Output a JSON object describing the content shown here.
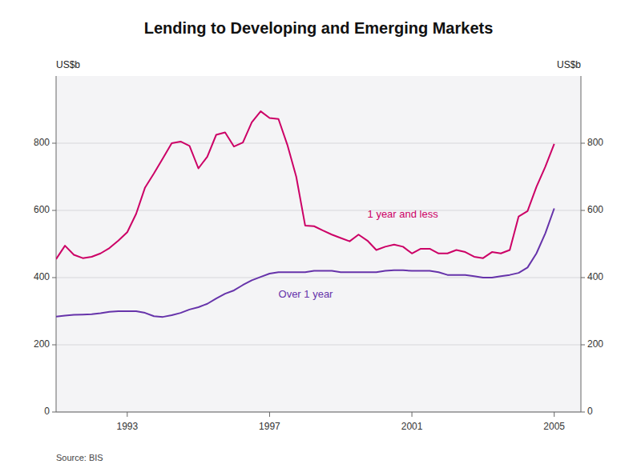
{
  "chart_data": {
    "type": "line",
    "title": "Lending to Developing and Emerging Markets",
    "y_label": "US$b",
    "y2_label": "US$b",
    "source": "Source: BIS",
    "x": [
      1991.0,
      1991.25,
      1991.5,
      1991.75,
      1992.0,
      1992.25,
      1992.5,
      1992.75,
      1993.0,
      1993.25,
      1993.5,
      1993.75,
      1994.0,
      1994.25,
      1994.5,
      1994.75,
      1995.0,
      1995.25,
      1995.5,
      1995.75,
      1996.0,
      1996.25,
      1996.5,
      1996.75,
      1997.0,
      1997.25,
      1997.5,
      1997.75,
      1998.0,
      1998.25,
      1998.5,
      1998.75,
      1999.0,
      1999.25,
      1999.5,
      1999.75,
      2000.0,
      2000.25,
      2000.5,
      2000.75,
      2001.0,
      2001.25,
      2001.5,
      2001.75,
      2002.0,
      2002.25,
      2002.5,
      2002.75,
      2003.0,
      2003.25,
      2003.5,
      2003.75,
      2004.0,
      2004.25,
      2004.5,
      2004.75,
      2005.0
    ],
    "series": [
      {
        "name": "1 year and less",
        "color": "#cc0066",
        "values": [
          455,
          495,
          468,
          458,
          462,
          472,
          488,
          510,
          535,
          590,
          668,
          710,
          755,
          800,
          805,
          792,
          725,
          760,
          825,
          832,
          790,
          802,
          862,
          895,
          875,
          872,
          795,
          700,
          555,
          553,
          540,
          528,
          518,
          508,
          528,
          510,
          482,
          492,
          498,
          492,
          472,
          486,
          486,
          472,
          472,
          482,
          476,
          462,
          458,
          476,
          472,
          482,
          582,
          598,
          670,
          730,
          798
        ]
      },
      {
        "name": "Over 1 year",
        "color": "#6633aa",
        "values": [
          284,
          287,
          289,
          290,
          291,
          294,
          298,
          300,
          300,
          300,
          295,
          285,
          283,
          288,
          295,
          305,
          312,
          322,
          338,
          352,
          362,
          378,
          392,
          402,
          412,
          416,
          416,
          416,
          416,
          420,
          420,
          420,
          416,
          416,
          416,
          416,
          416,
          420,
          422,
          422,
          420,
          420,
          420,
          416,
          408,
          408,
          408,
          404,
          400,
          400,
          404,
          408,
          414,
          430,
          472,
          532,
          606
        ]
      }
    ],
    "xlim": [
      1991.0,
      2005.75
    ],
    "xticks": [
      1993,
      1997,
      2001,
      2005
    ],
    "ylim": [
      0,
      1000
    ],
    "yticks": [
      0,
      200,
      400,
      600,
      800
    ],
    "y2lim": [
      0,
      1000
    ],
    "y2ticks": [
      0,
      200,
      400,
      600,
      800
    ],
    "grid": true
  }
}
